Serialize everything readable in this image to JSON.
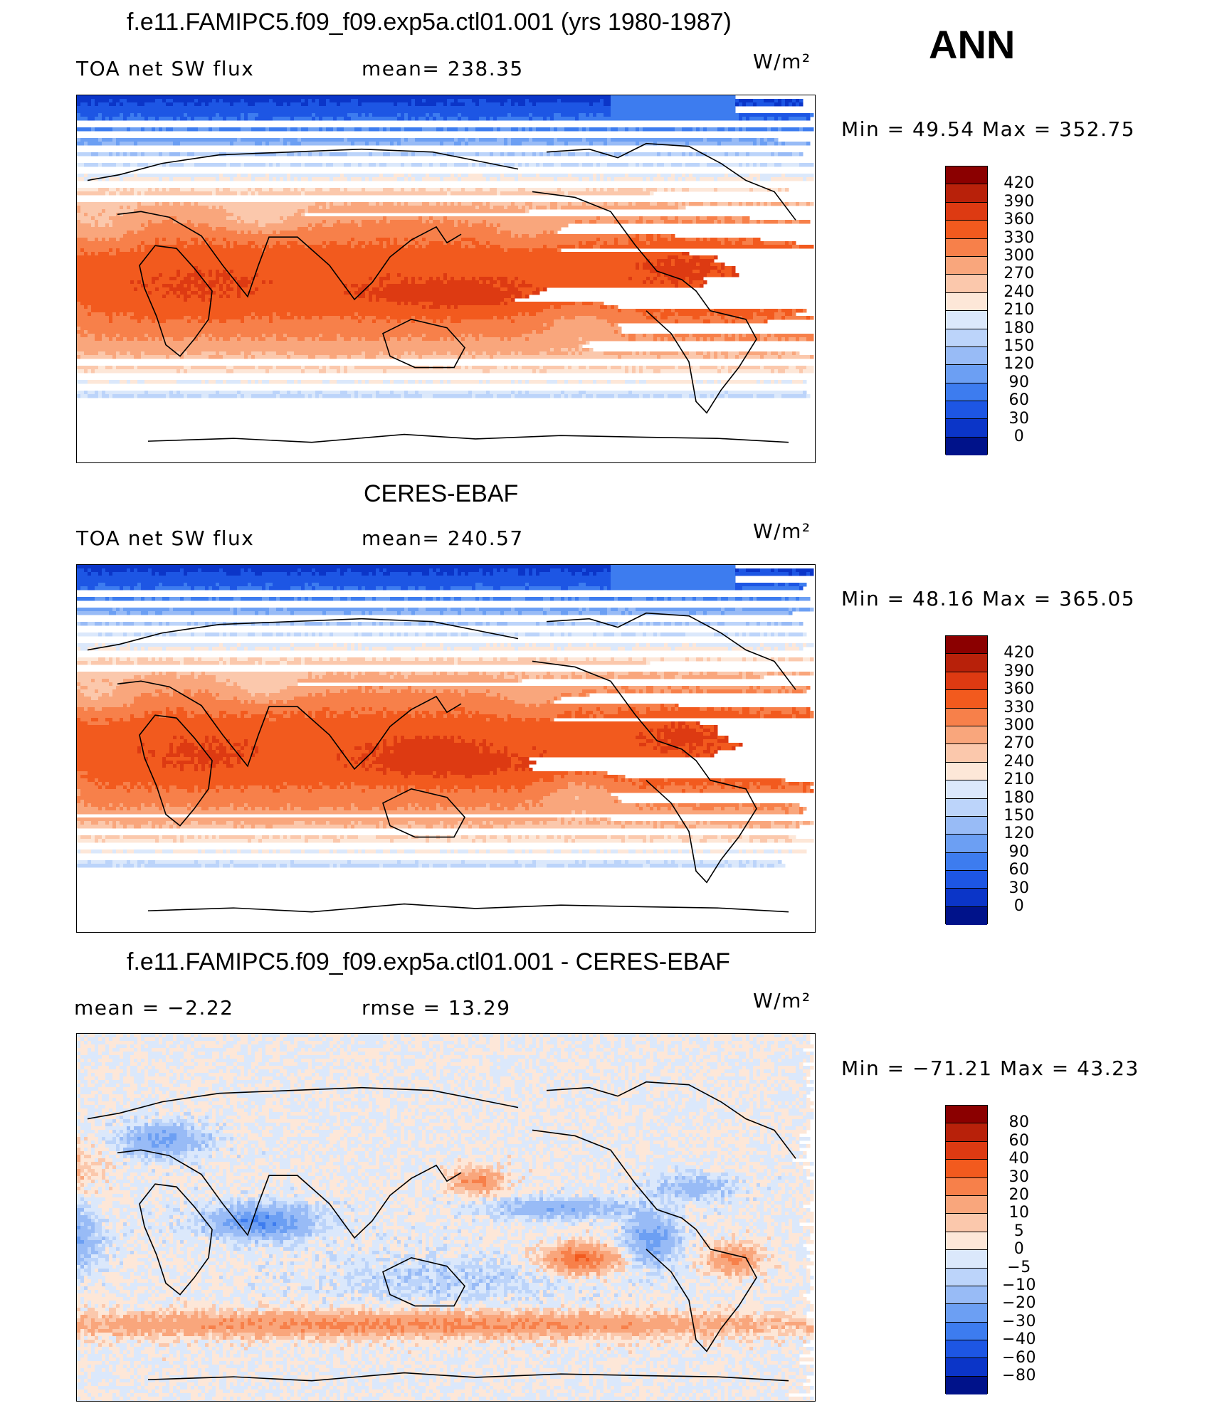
{
  "season": "ANN",
  "units": "W/m²",
  "panels": [
    {
      "title": "f.e11.FAMIPC5.f09_f09.exp5a.ctl01.001 (yrs 1980-1987)",
      "left_label": "TOA net SW flux",
      "mid_label": "mean= 238.35",
      "min_max": "Min =   49.54 Max = 352.75"
    },
    {
      "title": "CERES-EBAF",
      "left_label": "TOA net SW flux",
      "mid_label": "mean= 240.57",
      "min_max": "Min =   48.16 Max = 365.05"
    },
    {
      "title": "f.e11.FAMIPC5.f09_f09.exp5a.ctl01.001 - CERES-EBAF",
      "left_label": "mean =   −2.22",
      "mid_label": "rmse =   13.29",
      "min_max": "Min = −71.21 Max =   43.23"
    }
  ],
  "chart_data": [
    {
      "type": "heatmap",
      "title": "f.e11.FAMIPC5.f09_f09.exp5a.ctl01.001 (yrs 1980-1987)",
      "variable": "TOA net SW flux",
      "mean": 238.35,
      "min": 49.54,
      "max": 352.75,
      "units": "W/m2",
      "colorbar_levels": [
        420,
        390,
        360,
        330,
        300,
        270,
        240,
        210,
        180,
        150,
        120,
        90,
        60,
        30,
        0
      ],
      "colorbar_colors": [
        "#8b0000",
        "#b8210a",
        "#dd3a12",
        "#f25a1e",
        "#f7804a",
        "#f9a67c",
        "#fbc8ac",
        "#fde7d8",
        "#dbe8fb",
        "#bcd4fa",
        "#98bbf6",
        "#6c9ff3",
        "#3d7cef",
        "#1d56e4",
        "#0b35c8",
        "#00128a"
      ]
    },
    {
      "type": "heatmap",
      "title": "CERES-EBAF",
      "variable": "TOA net SW flux",
      "mean": 240.57,
      "min": 48.16,
      "max": 365.05,
      "units": "W/m2",
      "colorbar_levels": [
        420,
        390,
        360,
        330,
        300,
        270,
        240,
        210,
        180,
        150,
        120,
        90,
        60,
        30,
        0
      ],
      "colorbar_colors": [
        "#8b0000",
        "#b8210a",
        "#dd3a12",
        "#f25a1e",
        "#f7804a",
        "#f9a67c",
        "#fbc8ac",
        "#fde7d8",
        "#dbe8fb",
        "#bcd4fa",
        "#98bbf6",
        "#6c9ff3",
        "#3d7cef",
        "#1d56e4",
        "#0b35c8",
        "#00128a"
      ]
    },
    {
      "type": "heatmap",
      "title": "f.e11.FAMIPC5.f09_f09.exp5a.ctl01.001 - CERES-EBAF",
      "mean": -2.22,
      "rmse": 13.29,
      "min": -71.21,
      "max": 43.23,
      "units": "W/m2",
      "colorbar_levels": [
        "80",
        "60",
        "40",
        "30",
        "20",
        "10",
        "5",
        "0",
        "−5",
        "−10",
        "−20",
        "−30",
        "−40",
        "−60",
        "−80"
      ],
      "colorbar_colors": [
        "#8b0000",
        "#b8210a",
        "#dd3a12",
        "#f25a1e",
        "#f7804a",
        "#f9a67c",
        "#fbc8ac",
        "#fde7d8",
        "#dbe8fb",
        "#bcd4fa",
        "#98bbf6",
        "#6c9ff3",
        "#3d7cef",
        "#1d56e4",
        "#0b35c8",
        "#00128a"
      ]
    }
  ]
}
